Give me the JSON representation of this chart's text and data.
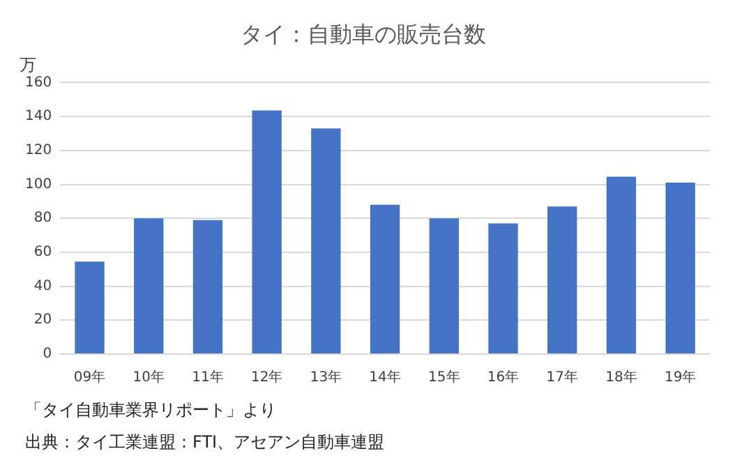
{
  "chart_data": {
    "type": "bar",
    "title": "タイ：自動車の販売台数",
    "ylabel": "万",
    "categories": [
      "09年",
      "10年",
      "11年",
      "12年",
      "13年",
      "14年",
      "15年",
      "16年",
      "17年",
      "18年",
      "19年"
    ],
    "values": [
      54.5,
      80,
      79,
      143.5,
      133,
      88,
      80,
      77,
      87,
      104.5,
      101
    ],
    "color": "#4472c4",
    "ylim": [
      0,
      160
    ],
    "yticks": [
      0,
      20,
      40,
      60,
      80,
      100,
      120,
      140,
      160
    ],
    "grid": "y",
    "legend": false,
    "annotations": [
      "「タイ自動車業界リポート」より",
      "出典：タイ工業連盟：FTI、アセアン自動車連盟"
    ]
  }
}
